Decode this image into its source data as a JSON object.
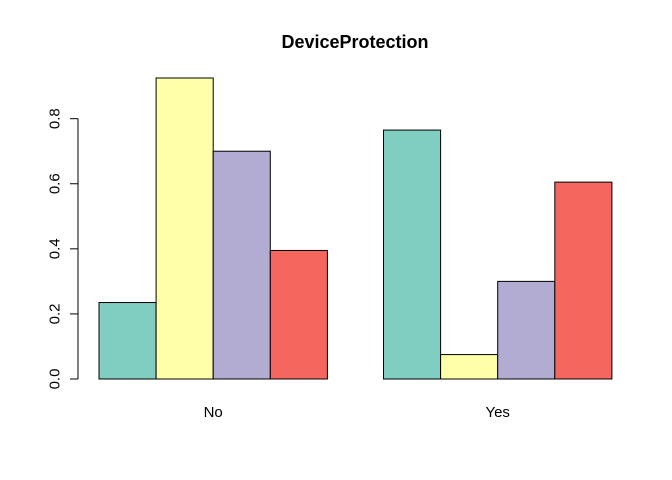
{
  "chart_data": {
    "type": "bar",
    "title": "DeviceProtection",
    "xlabel": "",
    "ylabel": "",
    "categories": [
      "No",
      "Yes"
    ],
    "series": [
      {
        "color": "#80CDC1",
        "values": [
          0.235,
          0.765
        ]
      },
      {
        "color": "#FFFFAA",
        "values": [
          0.925,
          0.075
        ]
      },
      {
        "color": "#B2ABD2",
        "values": [
          0.7,
          0.3
        ]
      },
      {
        "color": "#F4665E",
        "values": [
          0.395,
          0.605
        ]
      }
    ],
    "ylim": [
      0,
      0.925
    ],
    "yticks": [
      {
        "value": 0.0,
        "label": "0.0"
      },
      {
        "value": 0.2,
        "label": "0.2"
      },
      {
        "value": 0.4,
        "label": "0.4"
      },
      {
        "value": 0.6,
        "label": "0.6"
      },
      {
        "value": 0.8,
        "label": "0.8"
      }
    ],
    "grid": false,
    "legend": "none"
  }
}
